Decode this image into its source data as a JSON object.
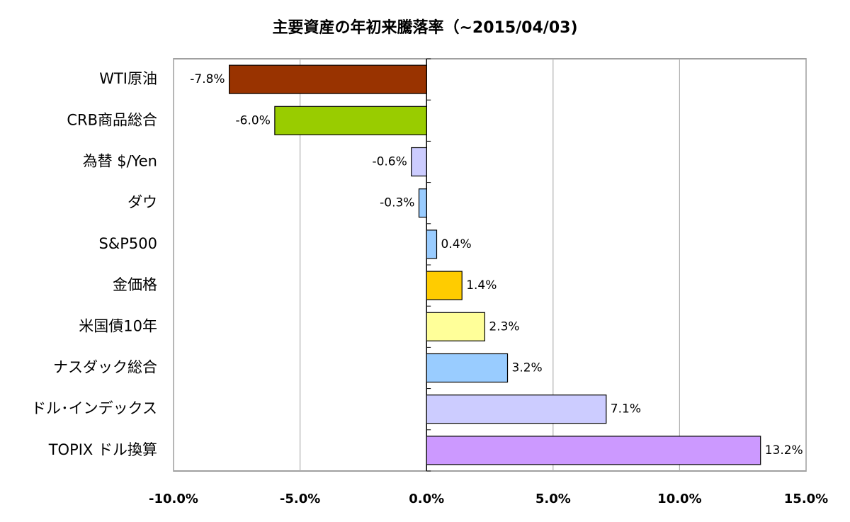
{
  "chart_data": {
    "type": "bar",
    "orientation": "horizontal",
    "title": "主要資産の年初来騰落率（~2015/04/03)",
    "categories": [
      "WTI原油",
      "CRB商品総合",
      "為替 $/Yen",
      "ダウ",
      "S&P500",
      "金価格",
      "米国債10年",
      "ナスダック総合",
      "ドル･インデックス",
      "TOPIX ドル換算"
    ],
    "values": [
      -7.8,
      -6.0,
      -0.6,
      -0.3,
      0.4,
      1.4,
      2.3,
      3.2,
      7.1,
      13.2
    ],
    "value_labels": [
      "-7.8%",
      "-6.0%",
      "-0.6%",
      "-0.3%",
      "0.4%",
      "1.4%",
      "2.3%",
      "3.2%",
      "7.1%",
      "13.2%"
    ],
    "colors": [
      "#993300",
      "#99cc00",
      "#ccccff",
      "#99ccff",
      "#99ccff",
      "#ffcc00",
      "#ffff99",
      "#99ccff",
      "#ccccff",
      "#cc99ff"
    ],
    "xlim": [
      -10,
      15
    ],
    "xticks": [
      {
        "value": -10,
        "label": "-10.0%"
      },
      {
        "value": -5,
        "label": "-5.0%"
      },
      {
        "value": 0,
        "label": "0.0%"
      },
      {
        "value": 5,
        "label": "5.0%"
      },
      {
        "value": 10,
        "label": "10.0%"
      },
      {
        "value": 15,
        "label": "15.0%"
      }
    ],
    "grid": true
  }
}
